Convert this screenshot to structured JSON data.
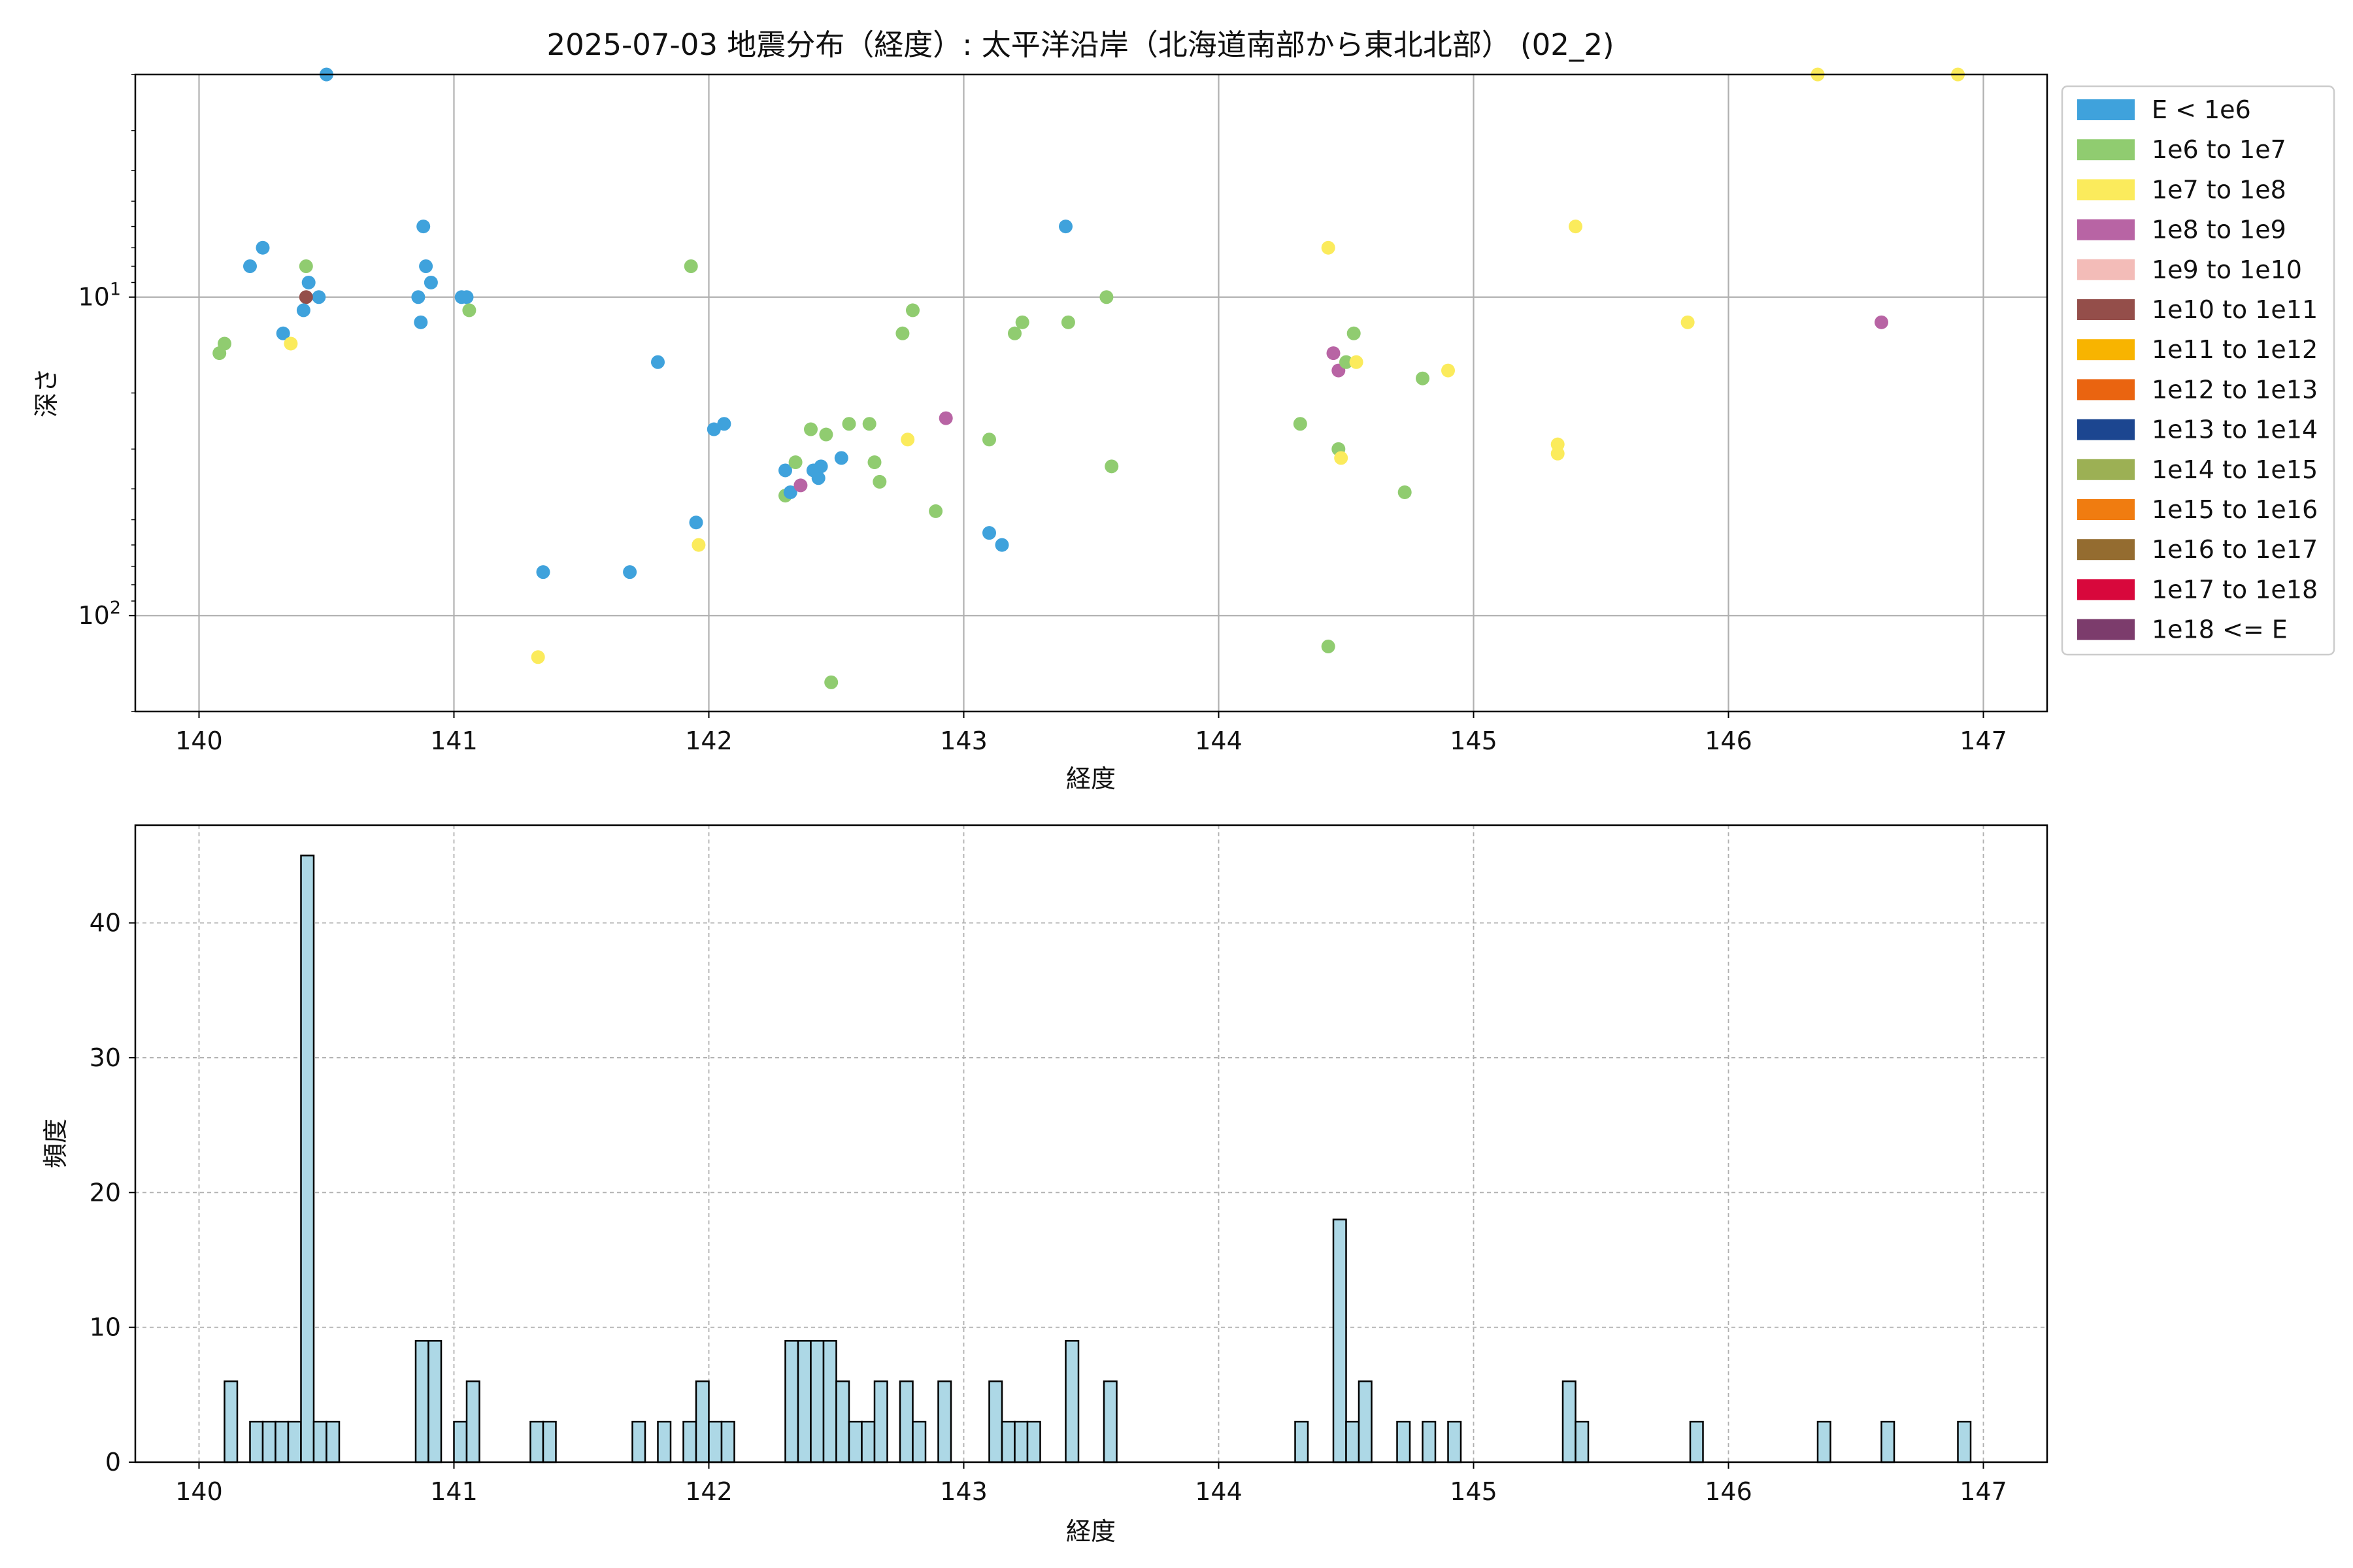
{
  "figure_title": "2025-07-03 地震分布（経度）: 太平洋沿岸（北海道南部から東北北部） (02_2)",
  "chart_data": [
    {
      "type": "scatter",
      "xlabel": "経度",
      "ylabel": "深さ",
      "xlim": [
        139.75,
        147.25
      ],
      "ylim": [
        200,
        2
      ],
      "y_scale": "log",
      "y_inverted": true,
      "grid": true,
      "x_ticks": [
        140,
        141,
        142,
        143,
        144,
        145,
        146,
        147
      ],
      "y_ticks": [
        {
          "value": 10,
          "base": "10",
          "exp": "1"
        },
        {
          "value": 100,
          "base": "10",
          "exp": "2"
        }
      ],
      "legend_position": "outside-right",
      "legend": [
        {
          "label": "E < 1e6",
          "color": "#3fa2dc"
        },
        {
          "label": "1e6 to 1e7",
          "color": "#90cc70"
        },
        {
          "label": "1e7 to 1e8",
          "color": "#fbeb5c"
        },
        {
          "label": "1e8 to 1e9",
          "color": "#b864a4"
        },
        {
          "label": "1e9 to 1e10",
          "color": "#f3bcb8"
        },
        {
          "label": "1e10 to 1e11",
          "color": "#944e4a"
        },
        {
          "label": "1e11 to 1e12",
          "color": "#f8b400"
        },
        {
          "label": "1e12 to 1e13",
          "color": "#ea6410"
        },
        {
          "label": "1e13 to 1e14",
          "color": "#1c4690"
        },
        {
          "label": "1e14 to 1e15",
          "color": "#9cb054"
        },
        {
          "label": "1e15 to 1e16",
          "color": "#f07c10"
        },
        {
          "label": "1e16 to 1e17",
          "color": "#946c30"
        },
        {
          "label": "1e17 to 1e18",
          "color": "#d8083c"
        },
        {
          "label": "1e18 <= E",
          "color": "#7c3c6c"
        }
      ],
      "points": [
        {
          "x": 140.5,
          "y": 2.0,
          "c": 0
        },
        {
          "x": 140.2,
          "y": 8.0,
          "c": 0
        },
        {
          "x": 140.25,
          "y": 7.0,
          "c": 0
        },
        {
          "x": 140.42,
          "y": 8.0,
          "c": 1
        },
        {
          "x": 140.43,
          "y": 9.0,
          "c": 0
        },
        {
          "x": 140.47,
          "y": 10.0,
          "c": 0
        },
        {
          "x": 140.42,
          "y": 10.0,
          "c": 5
        },
        {
          "x": 140.41,
          "y": 11.0,
          "c": 0
        },
        {
          "x": 140.08,
          "y": 15.0,
          "c": 1
        },
        {
          "x": 140.1,
          "y": 14.0,
          "c": 1
        },
        {
          "x": 140.33,
          "y": 13.0,
          "c": 0
        },
        {
          "x": 140.36,
          "y": 14.0,
          "c": 2
        },
        {
          "x": 140.88,
          "y": 6.0,
          "c": 0
        },
        {
          "x": 140.89,
          "y": 8.0,
          "c": 0
        },
        {
          "x": 140.91,
          "y": 9.0,
          "c": 0
        },
        {
          "x": 140.86,
          "y": 10.0,
          "c": 0
        },
        {
          "x": 140.87,
          "y": 12.0,
          "c": 0
        },
        {
          "x": 141.03,
          "y": 10.0,
          "c": 0
        },
        {
          "x": 141.05,
          "y": 10.0,
          "c": 0
        },
        {
          "x": 141.06,
          "y": 11.0,
          "c": 1
        },
        {
          "x": 141.8,
          "y": 16.0,
          "c": 0
        },
        {
          "x": 141.93,
          "y": 8.0,
          "c": 1
        },
        {
          "x": 142.02,
          "y": 26.0,
          "c": 0
        },
        {
          "x": 142.06,
          "y": 25.0,
          "c": 0
        },
        {
          "x": 141.95,
          "y": 51.0,
          "c": 0
        },
        {
          "x": 141.96,
          "y": 60.0,
          "c": 2
        },
        {
          "x": 141.35,
          "y": 73.0,
          "c": 0
        },
        {
          "x": 141.69,
          "y": 73.0,
          "c": 0
        },
        {
          "x": 141.33,
          "y": 135.0,
          "c": 2
        },
        {
          "x": 142.3,
          "y": 35.0,
          "c": 0
        },
        {
          "x": 142.34,
          "y": 33.0,
          "c": 1
        },
        {
          "x": 142.4,
          "y": 26.0,
          "c": 1
        },
        {
          "x": 142.41,
          "y": 35.0,
          "c": 0
        },
        {
          "x": 142.43,
          "y": 37.0,
          "c": 0
        },
        {
          "x": 142.44,
          "y": 34.0,
          "c": 0
        },
        {
          "x": 142.46,
          "y": 27.0,
          "c": 1
        },
        {
          "x": 142.3,
          "y": 42.0,
          "c": 1
        },
        {
          "x": 142.32,
          "y": 41.0,
          "c": 0
        },
        {
          "x": 142.36,
          "y": 39.0,
          "c": 3
        },
        {
          "x": 142.52,
          "y": 32.0,
          "c": 0
        },
        {
          "x": 142.55,
          "y": 25.0,
          "c": 1
        },
        {
          "x": 142.63,
          "y": 25.0,
          "c": 1
        },
        {
          "x": 142.65,
          "y": 33.0,
          "c": 1
        },
        {
          "x": 142.67,
          "y": 38.0,
          "c": 1
        },
        {
          "x": 142.76,
          "y": 13.0,
          "c": 1
        },
        {
          "x": 142.8,
          "y": 11.0,
          "c": 1
        },
        {
          "x": 142.78,
          "y": 28.0,
          "c": 2
        },
        {
          "x": 142.89,
          "y": 47.0,
          "c": 1
        },
        {
          "x": 142.93,
          "y": 24.0,
          "c": 3
        },
        {
          "x": 142.48,
          "y": 162.0,
          "c": 1
        },
        {
          "x": 143.1,
          "y": 28.0,
          "c": 1
        },
        {
          "x": 143.1,
          "y": 55.0,
          "c": 0
        },
        {
          "x": 143.15,
          "y": 60.0,
          "c": 0
        },
        {
          "x": 143.2,
          "y": 13.0,
          "c": 1
        },
        {
          "x": 143.23,
          "y": 12.0,
          "c": 1
        },
        {
          "x": 143.4,
          "y": 6.0,
          "c": 0
        },
        {
          "x": 143.41,
          "y": 12.0,
          "c": 1
        },
        {
          "x": 143.56,
          "y": 10.0,
          "c": 1
        },
        {
          "x": 143.58,
          "y": 34.0,
          "c": 1
        },
        {
          "x": 144.32,
          "y": 25.0,
          "c": 1
        },
        {
          "x": 144.43,
          "y": 7.0,
          "c": 2
        },
        {
          "x": 144.45,
          "y": 15.0,
          "c": 3
        },
        {
          "x": 144.47,
          "y": 17.0,
          "c": 3
        },
        {
          "x": 144.5,
          "y": 16.0,
          "c": 1
        },
        {
          "x": 144.53,
          "y": 13.0,
          "c": 1
        },
        {
          "x": 144.54,
          "y": 16.0,
          "c": 2
        },
        {
          "x": 144.47,
          "y": 30.0,
          "c": 1
        },
        {
          "x": 144.48,
          "y": 32.0,
          "c": 2
        },
        {
          "x": 144.43,
          "y": 125.0,
          "c": 1
        },
        {
          "x": 144.73,
          "y": 41.0,
          "c": 1
        },
        {
          "x": 144.8,
          "y": 18.0,
          "c": 1
        },
        {
          "x": 144.9,
          "y": 17.0,
          "c": 2
        },
        {
          "x": 145.33,
          "y": 29.0,
          "c": 2
        },
        {
          "x": 145.33,
          "y": 31.0,
          "c": 2
        },
        {
          "x": 145.4,
          "y": 6.0,
          "c": 2
        },
        {
          "x": 145.84,
          "y": 12.0,
          "c": 2
        },
        {
          "x": 146.35,
          "y": 2.0,
          "c": 2
        },
        {
          "x": 146.6,
          "y": 12.0,
          "c": 3
        },
        {
          "x": 146.9,
          "y": 2.0,
          "c": 2
        }
      ]
    },
    {
      "type": "bar",
      "xlabel": "経度",
      "ylabel": "頻度",
      "xlim": [
        139.75,
        147.25
      ],
      "ylim": [
        0,
        47.25
      ],
      "grid": true,
      "x_ticks": [
        140,
        141,
        142,
        143,
        144,
        145,
        146,
        147
      ],
      "y_ticks": [
        0,
        10,
        20,
        30,
        40
      ],
      "bar_color": "#add8e6",
      "bin_width": 0.05,
      "bins": [
        {
          "x": 140.1,
          "v": 6
        },
        {
          "x": 140.2,
          "v": 3
        },
        {
          "x": 140.25,
          "v": 3
        },
        {
          "x": 140.3,
          "v": 3
        },
        {
          "x": 140.35,
          "v": 3
        },
        {
          "x": 140.4,
          "v": 45
        },
        {
          "x": 140.45,
          "v": 3
        },
        {
          "x": 140.5,
          "v": 3
        },
        {
          "x": 140.85,
          "v": 9
        },
        {
          "x": 140.9,
          "v": 9
        },
        {
          "x": 141.0,
          "v": 3
        },
        {
          "x": 141.05,
          "v": 6
        },
        {
          "x": 141.3,
          "v": 3
        },
        {
          "x": 141.35,
          "v": 3
        },
        {
          "x": 141.7,
          "v": 3
        },
        {
          "x": 141.8,
          "v": 3
        },
        {
          "x": 141.9,
          "v": 3
        },
        {
          "x": 141.95,
          "v": 6
        },
        {
          "x": 142.0,
          "v": 3
        },
        {
          "x": 142.05,
          "v": 3
        },
        {
          "x": 142.3,
          "v": 9
        },
        {
          "x": 142.35,
          "v": 9
        },
        {
          "x": 142.4,
          "v": 9
        },
        {
          "x": 142.45,
          "v": 9
        },
        {
          "x": 142.5,
          "v": 6
        },
        {
          "x": 142.55,
          "v": 3
        },
        {
          "x": 142.6,
          "v": 3
        },
        {
          "x": 142.65,
          "v": 6
        },
        {
          "x": 142.75,
          "v": 6
        },
        {
          "x": 142.8,
          "v": 3
        },
        {
          "x": 142.9,
          "v": 6
        },
        {
          "x": 143.1,
          "v": 6
        },
        {
          "x": 143.15,
          "v": 3
        },
        {
          "x": 143.2,
          "v": 3
        },
        {
          "x": 143.25,
          "v": 3
        },
        {
          "x": 143.4,
          "v": 9
        },
        {
          "x": 143.55,
          "v": 6
        },
        {
          "x": 144.3,
          "v": 3
        },
        {
          "x": 144.45,
          "v": 18
        },
        {
          "x": 144.5,
          "v": 3
        },
        {
          "x": 144.55,
          "v": 6
        },
        {
          "x": 144.7,
          "v": 3
        },
        {
          "x": 144.8,
          "v": 3
        },
        {
          "x": 144.9,
          "v": 3
        },
        {
          "x": 145.35,
          "v": 6
        },
        {
          "x": 145.4,
          "v": 3
        },
        {
          "x": 145.85,
          "v": 3
        },
        {
          "x": 146.35,
          "v": 3
        },
        {
          "x": 146.6,
          "v": 3
        },
        {
          "x": 146.9,
          "v": 3
        }
      ]
    }
  ]
}
